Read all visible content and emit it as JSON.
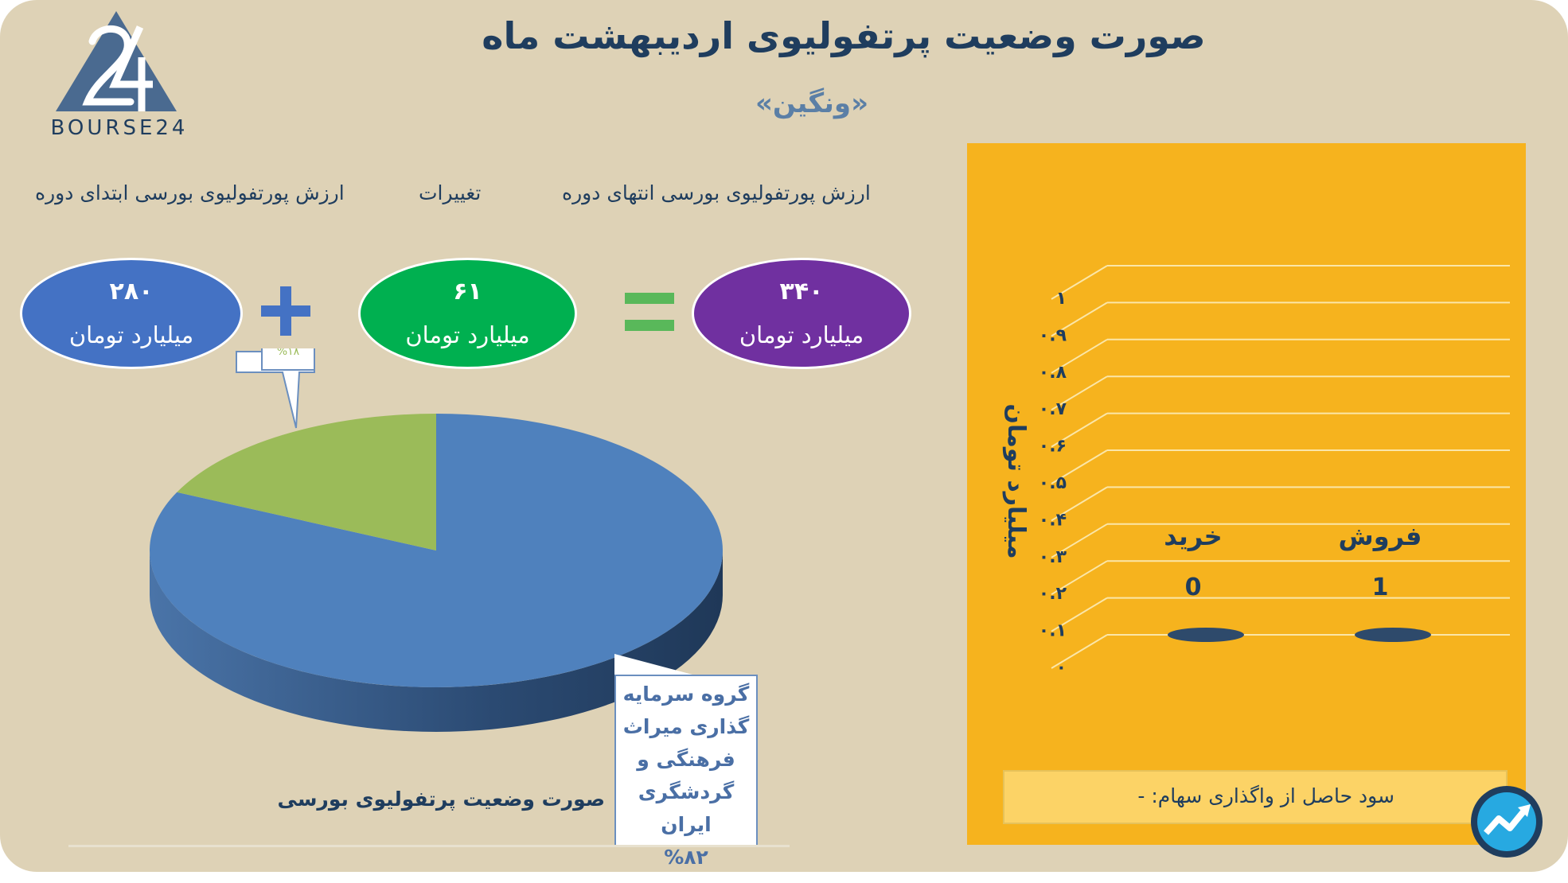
{
  "header": {
    "title": "صورت وضعیت پرتفولیوی اردیبهشت ماه",
    "subtitle": "«ونگین»",
    "logo_text": "BOURSE24"
  },
  "summary": {
    "end_label": "ارزش پورتفولیوی بورسی انتهای دوره",
    "change_label": "تغییرات",
    "start_label": "ارزش پورتفولیوی بورسی ابتدای دوره",
    "end_value": "۳۴۰",
    "change_value": "۶۱",
    "start_value": "۲۸۰",
    "unit": "میلیارد تومان",
    "colors": {
      "end": "#7030a0",
      "change": "#00b050",
      "start": "#4472c4"
    }
  },
  "chart_data": [
    {
      "type": "pie",
      "title": "صورت وضعیت پرتفولیوی بورسی",
      "slices": [
        {
          "label": "گروه سرمایه گذاری میراث فرهنگی و گردشگری ایران",
          "percent_label": "%۸۲",
          "value": 82,
          "color": "#4f81bd"
        },
        {
          "label": "",
          "percent_label": "%۱۸",
          "value": 18,
          "color": "#9bbb59"
        }
      ],
      "callout_lines": [
        "گروه سرمایه",
        "گذاری میراث",
        "فرهنگی و",
        "گردشگری ایران",
        "%۸۲"
      ]
    },
    {
      "type": "bar",
      "categories": [
        "فروش",
        "خرید"
      ],
      "values": [
        0,
        0
      ],
      "category_counts": [
        "1",
        "0"
      ],
      "ylabel": "میلیارد تومان",
      "ylim": [
        0,
        1
      ],
      "yticks": [
        "۰",
        "۰.۱",
        "۰.۲",
        "۰.۳",
        "۰.۴",
        "۰.۵",
        "۰.۶",
        "۰.۷",
        "۰.۸",
        "۰.۹",
        "۱"
      ],
      "grid": true,
      "bar_color": "#2e4a6b",
      "background": "#f6b31e"
    }
  ],
  "footer": {
    "profit_text": "سود حاصل از واگذاری سهام: -"
  }
}
